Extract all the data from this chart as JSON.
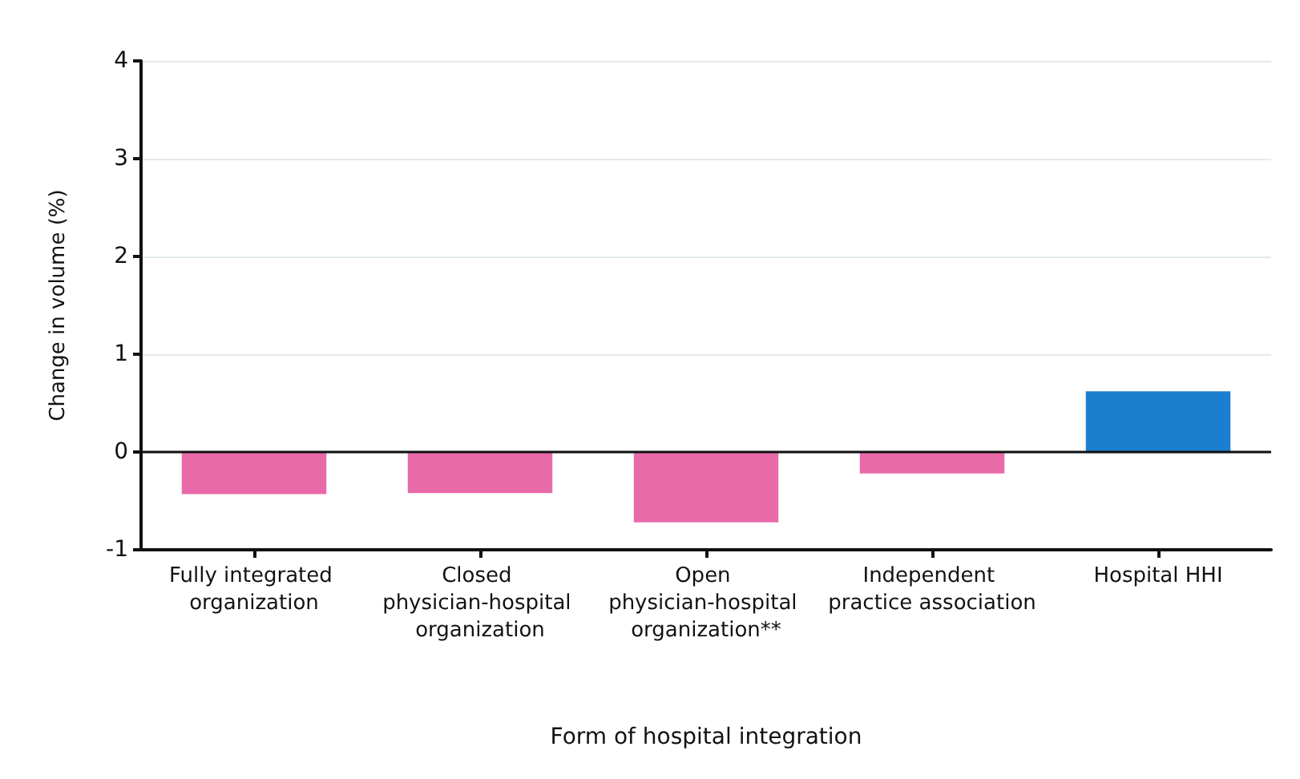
{
  "chart_data": {
    "type": "bar",
    "xlabel": "Form of hospital integration",
    "ylabel": "Change in volume (%)",
    "categories": [
      "Fully integrated organization",
      "Closed physician-hospital organization",
      "Open physician-hospital organization**",
      "Independent practice association",
      "Hospital HHI"
    ],
    "values": [
      -0.43,
      -0.42,
      -0.72,
      -0.22,
      0.62
    ],
    "colors": [
      "#e96aa9",
      "#e96aa9",
      "#e96aa9",
      "#e96aa9",
      "#1b7fd0"
    ],
    "ylim": [
      -1,
      4
    ],
    "yticks": [
      -1,
      0,
      1,
      2,
      3,
      4
    ],
    "grid": "y",
    "ref_lines": [
      {
        "axis": "y",
        "value": 0,
        "color": "#111111"
      }
    ]
  }
}
